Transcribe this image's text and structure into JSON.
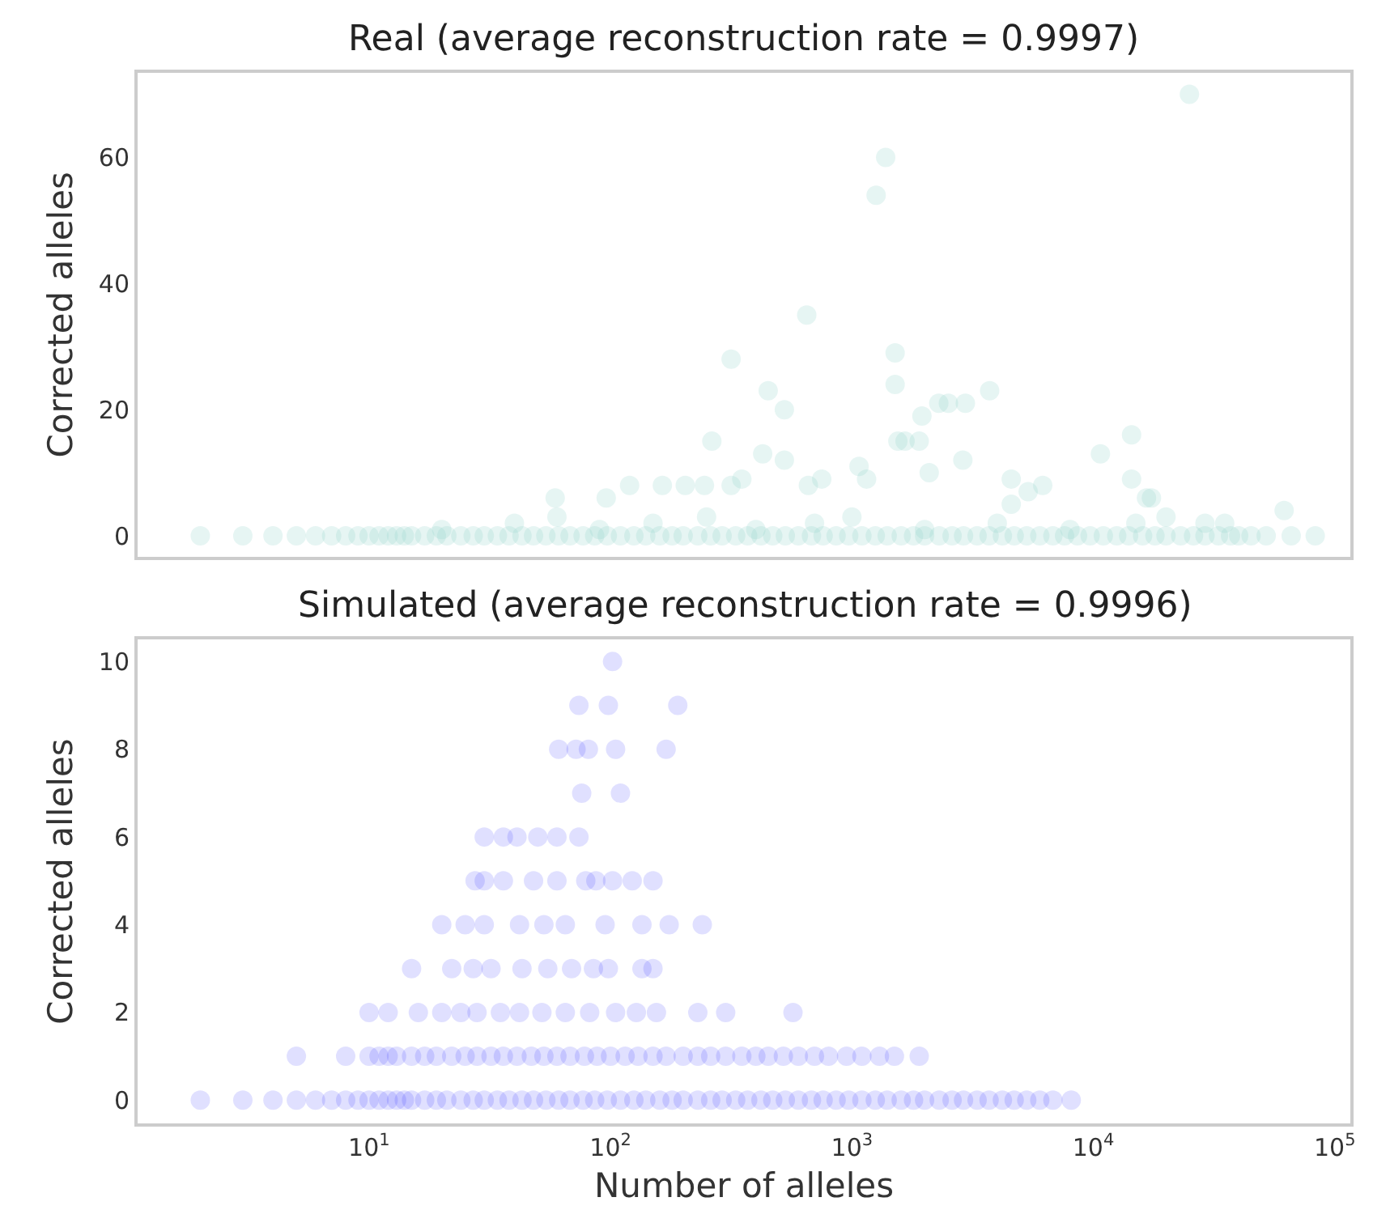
{
  "chart_data": [
    {
      "type": "scatter",
      "title": "Real (average reconstruction rate = 0.9997)",
      "ylabel": "Corrected alleles",
      "color": "#8dd3c7",
      "marker": "circle",
      "log": "x",
      "tick_labels": "y",
      "xlim": [
        1.1,
        116000
      ],
      "ylim": [
        -3.3,
        73.4
      ],
      "yticks": [
        0,
        20,
        40,
        60
      ],
      "x": [
        2,
        3,
        4,
        5,
        6,
        7,
        8,
        9,
        10,
        11,
        12,
        13,
        14,
        15,
        17,
        19,
        21,
        24,
        27,
        30,
        34,
        38,
        43,
        48,
        54,
        61,
        68,
        77,
        86,
        97,
        110,
        125,
        140,
        160,
        180,
        200,
        230,
        260,
        290,
        330,
        370,
        420,
        470,
        530,
        600,
        680,
        760,
        860,
        970,
        1100,
        1250,
        1400,
        1600,
        1800,
        2000,
        2300,
        2600,
        2900,
        3300,
        3700,
        4200,
        4700,
        5300,
        6000,
        6800,
        7600,
        8600,
        9700,
        11000,
        12500,
        14000,
        16000,
        18000,
        20000,
        23000,
        26000,
        29000,
        33000,
        37000,
        40000,
        45000,
        52000,
        66000,
        83000,
        20,
        40,
        60,
        90,
        150,
        250,
        400,
        700,
        1000,
        2000,
        4000,
        8000,
        15000,
        20000,
        29000,
        35000,
        25000,
        1380,
        1260,
        650,
        316,
        1510,
        1510,
        450,
        3720,
        525,
        1950,
        2290,
        2510,
        2950,
        14400,
        10700,
        2880,
        263,
        427,
        525,
        1550,
        1660,
        1900,
        2090,
        1070,
        1150,
        14400,
        4570,
        5370,
        6170,
        16600,
        17400,
        4570,
        61700,
        660,
        750,
        316,
        350,
        59,
        96,
        120,
        164,
        204,
        245
      ],
      "values": [
        0,
        0,
        0,
        0,
        0,
        0,
        0,
        0,
        0,
        0,
        0,
        0,
        0,
        0,
        0,
        0,
        0,
        0,
        0,
        0,
        0,
        0,
        0,
        0,
        0,
        0,
        0,
        0,
        0,
        0,
        0,
        0,
        0,
        0,
        0,
        0,
        0,
        0,
        0,
        0,
        0,
        0,
        0,
        0,
        0,
        0,
        0,
        0,
        0,
        0,
        0,
        0,
        0,
        0,
        0,
        0,
        0,
        0,
        0,
        0,
        0,
        0,
        0,
        0,
        0,
        0,
        0,
        0,
        0,
        0,
        0,
        0,
        0,
        0,
        0,
        0,
        0,
        0,
        0,
        0,
        0,
        0,
        0,
        0,
        1,
        2,
        3,
        1,
        2,
        3,
        1,
        2,
        3,
        1,
        2,
        1,
        2,
        3,
        2,
        2,
        70,
        60,
        54,
        35,
        28,
        29,
        24,
        23,
        23,
        20,
        19,
        21,
        21,
        21,
        16,
        13,
        12,
        15,
        13,
        12,
        15,
        15,
        15,
        10,
        11,
        9,
        9,
        9,
        7,
        8,
        6,
        6,
        5,
        4,
        8,
        9,
        8,
        9,
        6,
        6,
        8,
        8,
        8,
        8
      ]
    },
    {
      "type": "scatter",
      "title": "Simulated (average reconstruction rate = 0.9996)",
      "ylabel": "Corrected alleles",
      "xlabel": "Number of alleles",
      "color": "#0000ff",
      "marker": "circle",
      "log": "x",
      "xlim": [
        1.1,
        116000
      ],
      "ylim": [
        -0.53,
        10.5
      ],
      "yticks": [
        0,
        2,
        4,
        6,
        8,
        10
      ],
      "xticks": [
        {
          "value": 10,
          "label": "10$^{1}$"
        },
        {
          "value": 100,
          "label": "10$^{2}$"
        },
        {
          "value": 1000,
          "label": "10$^{3}$"
        },
        {
          "value": 10000,
          "label": "10$^{4}$"
        },
        {
          "value": 100000,
          "label": "10$^{5}$"
        }
      ],
      "x": [
        2,
        3,
        4,
        5,
        6,
        7,
        8,
        9,
        10,
        11,
        12,
        13,
        14,
        15,
        17,
        19,
        21,
        24,
        27,
        30,
        34,
        38,
        43,
        48,
        54,
        61,
        68,
        77,
        86,
        97,
        110,
        125,
        140,
        160,
        180,
        200,
        230,
        260,
        290,
        330,
        370,
        420,
        470,
        530,
        600,
        680,
        760,
        860,
        970,
        1100,
        1250,
        1400,
        1600,
        1800,
        2000,
        2300,
        2600,
        2900,
        3300,
        3700,
        4200,
        4700,
        5300,
        6000,
        6800,
        8100,
        5,
        8,
        10,
        11,
        12,
        13,
        15,
        17,
        19,
        22,
        25,
        28,
        32,
        36,
        41,
        47,
        53,
        60,
        68,
        78,
        88,
        100,
        115,
        130,
        150,
        170,
        200,
        230,
        260,
        300,
        350,
        400,
        450,
        520,
        600,
        700,
        800,
        950,
        1100,
        1300,
        1500,
        1900,
        10,
        12,
        16,
        20,
        24,
        28,
        35,
        42,
        52,
        65,
        82,
        105,
        128,
        155,
        230,
        300,
        570,
        15,
        22,
        27,
        32,
        43,
        55,
        69,
        85,
        98,
        135,
        150,
        20,
        25,
        30,
        42,
        53,
        65,
        95,
        135,
        175,
        240,
        27.5,
        30,
        36,
        48,
        60,
        79,
        87,
        102,
        123,
        150,
        30,
        36,
        41,
        50,
        60,
        74,
        76,
        110,
        61,
        72,
        81,
        105,
        170,
        74,
        98,
        190,
        102
      ],
      "values": [
        0,
        0,
        0,
        0,
        0,
        0,
        0,
        0,
        0,
        0,
        0,
        0,
        0,
        0,
        0,
        0,
        0,
        0,
        0,
        0,
        0,
        0,
        0,
        0,
        0,
        0,
        0,
        0,
        0,
        0,
        0,
        0,
        0,
        0,
        0,
        0,
        0,
        0,
        0,
        0,
        0,
        0,
        0,
        0,
        0,
        0,
        0,
        0,
        0,
        0,
        0,
        0,
        0,
        0,
        0,
        0,
        0,
        0,
        0,
        0,
        0,
        0,
        0,
        0,
        0,
        0,
        1,
        1,
        1,
        1,
        1,
        1,
        1,
        1,
        1,
        1,
        1,
        1,
        1,
        1,
        1,
        1,
        1,
        1,
        1,
        1,
        1,
        1,
        1,
        1,
        1,
        1,
        1,
        1,
        1,
        1,
        1,
        1,
        1,
        1,
        1,
        1,
        1,
        1,
        1,
        1,
        1,
        1,
        2,
        2,
        2,
        2,
        2,
        2,
        2,
        2,
        2,
        2,
        2,
        2,
        2,
        2,
        2,
        2,
        2,
        3,
        3,
        3,
        3,
        3,
        3,
        3,
        3,
        3,
        3,
        3,
        4,
        4,
        4,
        4,
        4,
        4,
        4,
        4,
        4,
        4,
        5,
        5,
        5,
        5,
        5,
        5,
        5,
        5,
        5,
        5,
        6,
        6,
        6,
        6,
        6,
        6,
        7,
        7,
        8,
        8,
        8,
        8,
        8,
        9,
        9,
        9,
        10
      ]
    }
  ]
}
